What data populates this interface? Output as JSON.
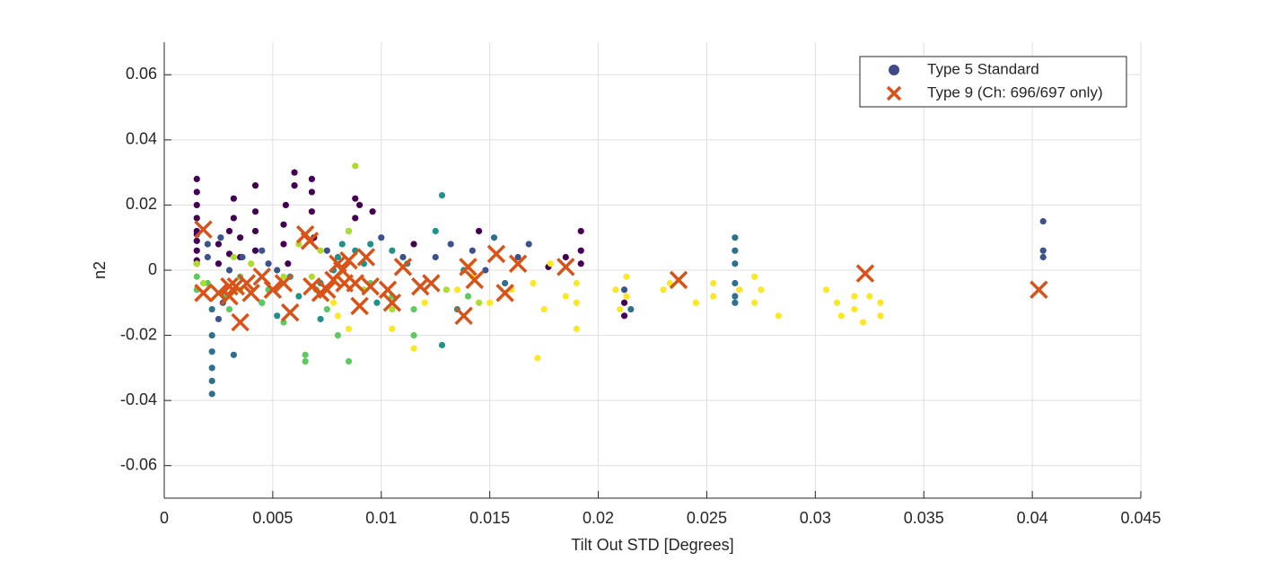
{
  "chart_data": {
    "type": "scatter",
    "xlabel": "Tilt Out STD [Degrees]",
    "ylabel": "n2",
    "xlim": [
      0,
      0.045
    ],
    "ylim": [
      -0.07,
      0.07
    ],
    "xticks": [
      0,
      0.005,
      0.01,
      0.015,
      0.02,
      0.025,
      0.03,
      0.035,
      0.04,
      0.045
    ],
    "yticks": [
      -0.06,
      -0.04,
      -0.02,
      0,
      0.02,
      0.04,
      0.06
    ],
    "grid": true,
    "legend": "upper right",
    "series": [
      {
        "name": "Type 5 Standard",
        "color": "#3e4a89",
        "marker": "circle",
        "x": [
          0.0015,
          0.0015,
          0.0015,
          0.0015,
          0.0015,
          0.0015,
          0.0015,
          0.0015,
          0.0015,
          0.0015,
          0.0025,
          0.0025,
          0.003,
          0.003,
          0.0032,
          0.0032,
          0.0035,
          0.0035,
          0.0042,
          0.0042,
          0.0042,
          0.0042,
          0.0055,
          0.0055,
          0.0056,
          0.0057,
          0.006,
          0.006,
          0.0068,
          0.0068,
          0.0068,
          0.0069,
          0.0088,
          0.0088,
          0.009,
          0.0096,
          0.0115,
          0.0145,
          0.0192,
          0.0192,
          0.0192,
          0.0185,
          0.0177,
          0.0212,
          0.0212,
          0.002,
          0.002,
          0.0026,
          0.003,
          0.0036,
          0.0045,
          0.0048,
          0.0052,
          0.0075,
          0.01,
          0.011,
          0.0125,
          0.0132,
          0.0142,
          0.0148,
          0.0163,
          0.0168,
          0.0212,
          0.0405,
          0.0405,
          0.0405,
          0.0025,
          0.0027,
          0.0022,
          0.0022,
          0.0022,
          0.0022,
          0.0022,
          0.0022,
          0.0032,
          0.0045,
          0.0062,
          0.0072,
          0.0078,
          0.008,
          0.0082,
          0.0085,
          0.0088,
          0.0092,
          0.0095,
          0.0105,
          0.0112,
          0.0125,
          0.0128,
          0.0135,
          0.0138,
          0.0152,
          0.0157,
          0.0215,
          0.0263,
          0.0263,
          0.0263,
          0.0263,
          0.0263,
          0.0263,
          0.0128,
          0.0058,
          0.0052,
          0.0072,
          0.0098,
          0.0015,
          0.0015,
          0.002,
          0.0028,
          0.003,
          0.0035,
          0.0048,
          0.0055,
          0.0065,
          0.0065,
          0.007,
          0.0075,
          0.008,
          0.0095,
          0.0105,
          0.0115,
          0.0115,
          0.014,
          0.0085,
          0.0045,
          0.0015,
          0.0018,
          0.0032,
          0.0035,
          0.004,
          0.0055,
          0.0062,
          0.0068,
          0.0072,
          0.0085,
          0.0088,
          0.0092,
          0.0105,
          0.013,
          0.0145,
          0.0078,
          0.008,
          0.0085,
          0.0105,
          0.0115,
          0.012,
          0.0135,
          0.0142,
          0.015,
          0.016,
          0.017,
          0.0172,
          0.0175,
          0.0178,
          0.0185,
          0.019,
          0.019,
          0.019,
          0.0208,
          0.021,
          0.0213,
          0.0213,
          0.023,
          0.0233,
          0.0245,
          0.0253,
          0.0253,
          0.0265,
          0.0272,
          0.0272,
          0.0275,
          0.0283,
          0.0305,
          0.031,
          0.0312,
          0.0318,
          0.0318,
          0.0322,
          0.0325,
          0.033,
          0.033
        ],
        "values": [
          0.012,
          0.006,
          0.002,
          0.009,
          0.011,
          0.016,
          0.02,
          0.024,
          0.028,
          0.003,
          0.008,
          0.002,
          0.012,
          0.005,
          0.022,
          0.016,
          0.01,
          0.004,
          0.026,
          0.018,
          0.012,
          0.006,
          0.014,
          0.008,
          0.02,
          0.002,
          0.03,
          0.026,
          0.028,
          0.024,
          0.018,
          0.01,
          0.022,
          0.016,
          0.02,
          0.018,
          0.008,
          0.012,
          0.012,
          0.006,
          0.002,
          0.004,
          0.001,
          -0.01,
          -0.014,
          0.008,
          0.004,
          0.01,
          0,
          0.004,
          0.006,
          0.002,
          0,
          0.006,
          0.01,
          0.004,
          0.004,
          0.008,
          0.006,
          0,
          0.004,
          0.008,
          -0.006,
          0.015,
          0.006,
          0.004,
          -0.015,
          -0.01,
          -0.02,
          -0.025,
          -0.03,
          -0.034,
          -0.038,
          -0.012,
          -0.026,
          -0.01,
          -0.008,
          -0.015,
          0,
          0.004,
          0.008,
          0.012,
          0.006,
          0.002,
          0.008,
          0.006,
          0.002,
          0.012,
          -0.023,
          -0.012,
          0,
          0.01,
          -0.004,
          -0.012,
          0.01,
          0.006,
          0.002,
          -0.004,
          -0.008,
          -0.01,
          0.023,
          -0.002,
          -0.014,
          -0.004,
          -0.01,
          -0.002,
          -0.006,
          -0.004,
          -0.008,
          -0.012,
          -0.002,
          -0.006,
          -0.016,
          -0.026,
          -0.028,
          -0.006,
          -0.012,
          -0.02,
          -0.004,
          -0.008,
          -0.02,
          -0.012,
          -0.008,
          -0.028,
          -0.01,
          0.002,
          -0.004,
          0.004,
          -0.006,
          0.002,
          -0.002,
          0.008,
          -0.002,
          0.006,
          0.012,
          0.032,
          -0.006,
          -0.012,
          -0.006,
          -0.01,
          -0.01,
          -0.014,
          -0.018,
          -0.018,
          -0.024,
          -0.01,
          -0.006,
          -0.002,
          -0.01,
          -0.006,
          -0.004,
          -0.027,
          -0.012,
          0.002,
          -0.008,
          -0.01,
          -0.018,
          -0.004,
          -0.006,
          -0.012,
          -0.002,
          -0.008,
          -0.006,
          -0.004,
          -0.01,
          -0.004,
          -0.008,
          -0.006,
          -0.002,
          -0.01,
          -0.006,
          -0.014,
          -0.006,
          -0.01,
          -0.014,
          -0.008,
          -0.012,
          -0.016,
          -0.008,
          -0.014,
          -0.01
        ],
        "point_colors": [
          "#440154",
          "#440154",
          "#440154",
          "#440154",
          "#440154",
          "#440154",
          "#440154",
          "#440154",
          "#440154",
          "#440154",
          "#440154",
          "#440154",
          "#440154",
          "#440154",
          "#440154",
          "#440154",
          "#440154",
          "#440154",
          "#440154",
          "#440154",
          "#440154",
          "#440154",
          "#440154",
          "#440154",
          "#440154",
          "#440154",
          "#440154",
          "#440154",
          "#440154",
          "#440154",
          "#440154",
          "#440154",
          "#440154",
          "#440154",
          "#440154",
          "#440154",
          "#440154",
          "#440154",
          "#440154",
          "#440154",
          "#440154",
          "#440154",
          "#440154",
          "#440154",
          "#440154",
          "#3b528b",
          "#3b528b",
          "#3b528b",
          "#3b528b",
          "#3b528b",
          "#3b528b",
          "#3b528b",
          "#3b528b",
          "#3b528b",
          "#3b528b",
          "#3b528b",
          "#3b528b",
          "#3b528b",
          "#3b528b",
          "#3b528b",
          "#3b528b",
          "#3b528b",
          "#3b528b",
          "#3b528b",
          "#3b528b",
          "#3b528b",
          "#3b528b",
          "#3b528b",
          "#2c728e",
          "#2c728e",
          "#2c728e",
          "#2c728e",
          "#2c728e",
          "#2c728e",
          "#2c728e",
          "#21918c",
          "#21918c",
          "#21918c",
          "#21918c",
          "#21918c",
          "#21918c",
          "#21918c",
          "#21918c",
          "#21918c",
          "#21918c",
          "#21918c",
          "#21918c",
          "#21918c",
          "#21918c",
          "#21918c",
          "#21918c",
          "#2c728e",
          "#2c728e",
          "#2c728e",
          "#2c728e",
          "#2c728e",
          "#2c728e",
          "#2c728e",
          "#2c728e",
          "#2c728e",
          "#21918c",
          "#21918c",
          "#21918c",
          "#21918c",
          "#21918c",
          "#5ec962",
          "#5ec962",
          "#5ec962",
          "#5ec962",
          "#5ec962",
          "#5ec962",
          "#5ec962",
          "#5ec962",
          "#5ec962",
          "#5ec962",
          "#5ec962",
          "#5ec962",
          "#5ec962",
          "#5ec962",
          "#5ec962",
          "#5ec962",
          "#5ec962",
          "#5ec962",
          "#5ec962",
          "#5ec962",
          "#addc30",
          "#addc30",
          "#addc30",
          "#addc30",
          "#addc30",
          "#addc30",
          "#addc30",
          "#addc30",
          "#addc30",
          "#addc30",
          "#addc30",
          "#addc30",
          "#addc30",
          "#addc30",
          "#addc30",
          "#fde725",
          "#fde725",
          "#fde725",
          "#fde725",
          "#fde725",
          "#fde725",
          "#fde725",
          "#fde725",
          "#fde725",
          "#fde725",
          "#fde725",
          "#fde725",
          "#fde725",
          "#fde725",
          "#fde725",
          "#fde725",
          "#fde725",
          "#fde725",
          "#fde725",
          "#fde725",
          "#fde725",
          "#fde725",
          "#fde725",
          "#fde725",
          "#fde725",
          "#fde725",
          "#fde725",
          "#fde725",
          "#fde725",
          "#fde725",
          "#fde725",
          "#fde725",
          "#fde725",
          "#fde725",
          "#fde725",
          "#fde725",
          "#fde725",
          "#fde725",
          "#fde725",
          "#fde725",
          "#fde725"
        ]
      },
      {
        "name": "Type 9 (Ch: 696/697 only)",
        "color": "#d95319",
        "marker": "x",
        "x": [
          0.0018,
          0.0018,
          0.0025,
          0.003,
          0.003,
          0.0033,
          0.0035,
          0.0038,
          0.004,
          0.0045,
          0.005,
          0.0055,
          0.0058,
          0.0065,
          0.0067,
          0.0068,
          0.0072,
          0.0075,
          0.0078,
          0.008,
          0.0082,
          0.0083,
          0.0085,
          0.0088,
          0.009,
          0.0093,
          0.0095,
          0.0103,
          0.0105,
          0.011,
          0.0118,
          0.0123,
          0.0138,
          0.014,
          0.0143,
          0.0153,
          0.0157,
          0.0163,
          0.0185,
          0.0237,
          0.0323,
          0.0403
        ],
        "values": [
          0.0125,
          -0.007,
          -0.007,
          -0.005,
          -0.008,
          -0.005,
          -0.016,
          -0.004,
          -0.007,
          -0.002,
          -0.006,
          -0.004,
          -0.013,
          0.011,
          0.009,
          -0.005,
          -0.007,
          -0.006,
          -0.003,
          0.002,
          0,
          -0.004,
          0.003,
          -0.004,
          -0.011,
          0.004,
          -0.005,
          -0.006,
          -0.01,
          0.001,
          -0.005,
          -0.004,
          -0.014,
          0.001,
          -0.003,
          0.005,
          -0.007,
          0.002,
          0.001,
          -0.003,
          -0.001,
          -0.006
        ]
      }
    ]
  }
}
